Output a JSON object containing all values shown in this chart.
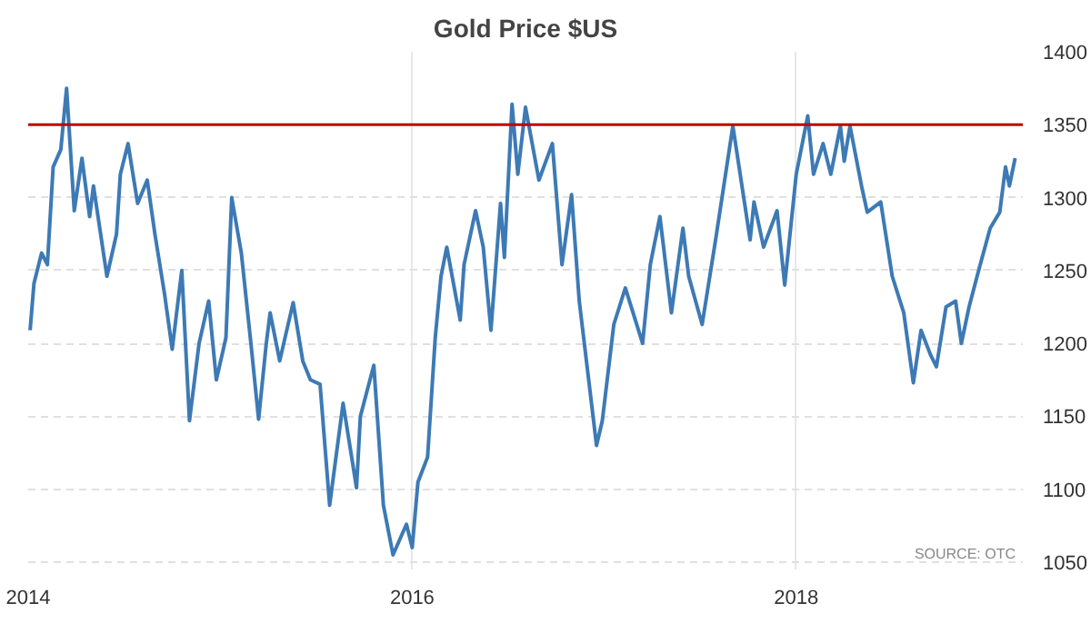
{
  "chart_data": {
    "type": "line",
    "title": "Gold Price $US",
    "x": [
      2014.01,
      2014.03,
      2014.07,
      2014.1,
      2014.13,
      2014.17,
      2014.2,
      2014.24,
      2014.28,
      2014.32,
      2014.34,
      2014.41,
      2014.46,
      2014.48,
      2014.52,
      2014.57,
      2014.62,
      2014.66,
      2014.71,
      2014.75,
      2014.8,
      2014.84,
      2014.89,
      2014.94,
      2014.98,
      2015.03,
      2015.06,
      2015.11,
      2015.16,
      2015.2,
      2015.24,
      2015.26,
      2015.31,
      2015.38,
      2015.43,
      2015.47,
      2015.52,
      2015.57,
      2015.64,
      2015.71,
      2015.73,
      2015.8,
      2015.85,
      2015.9,
      2015.97,
      2016.0,
      2016.03,
      2016.08,
      2016.12,
      2016.15,
      2016.18,
      2016.25,
      2016.27,
      2016.33,
      2016.37,
      2016.41,
      2016.46,
      2016.48,
      2016.52,
      2016.55,
      2016.59,
      2016.66,
      2016.73,
      2016.78,
      2016.83,
      2016.87,
      2016.96,
      2016.99,
      2017.05,
      2017.11,
      2017.2,
      2017.24,
      2017.29,
      2017.35,
      2017.41,
      2017.44,
      2017.51,
      2017.58,
      2017.67,
      2017.76,
      2017.78,
      2017.83,
      2017.9,
      2017.94,
      2018.0,
      2018.06,
      2018.09,
      2018.14,
      2018.18,
      2018.23,
      2018.25,
      2018.28,
      2018.34,
      2018.37,
      2018.44,
      2018.5,
      2018.56,
      2018.61,
      2018.65,
      2018.7,
      2018.73,
      2018.78,
      2018.83,
      2018.86,
      2018.9,
      2018.95,
      2019.01,
      2019.06,
      2019.09,
      2019.11,
      2019.14
    ],
    "series": [
      {
        "color": "#3d7ab5",
        "values": [
          1209,
          1241,
          1262,
          1254,
          1321,
          1333,
          1375,
          1291,
          1327,
          1287,
          1308,
          1246,
          1275,
          1316,
          1337,
          1296,
          1312,
          1275,
          1234,
          1196,
          1250,
          1147,
          1200,
          1229,
          1175,
          1204,
          1300,
          1262,
          1200,
          1148,
          1200,
          1221,
          1188,
          1228,
          1188,
          1175,
          1172,
          1089,
          1159,
          1101,
          1150,
          1185,
          1089,
          1055,
          1076,
          1060,
          1105,
          1122,
          1204,
          1246,
          1266,
          1216,
          1254,
          1291,
          1266,
          1209,
          1296,
          1259,
          1364,
          1316,
          1362,
          1312,
          1337,
          1254,
          1302,
          1229,
          1130,
          1147,
          1213,
          1238,
          1200,
          1254,
          1287,
          1221,
          1279,
          1246,
          1213,
          1271,
          1349,
          1271,
          1297,
          1266,
          1291,
          1240,
          1316,
          1356,
          1316,
          1337,
          1316,
          1349,
          1325,
          1349,
          1308,
          1290,
          1297,
          1246,
          1221,
          1173,
          1209,
          1192,
          1184,
          1225,
          1229,
          1200,
          1225,
          1250,
          1279,
          1290,
          1321,
          1308,
          1327
        ]
      }
    ],
    "xlim": [
      2014,
      2019.18
    ],
    "xticks": [
      2014,
      2016,
      2018
    ],
    "ylim": [
      1045,
      1400
    ],
    "yticks": [
      1050,
      1100,
      1150,
      1200,
      1250,
      1300,
      1350,
      1400
    ],
    "ref_lines": [
      {
        "axis": "y",
        "value": 1350,
        "color": "#c00000"
      }
    ],
    "grid": true,
    "annotations": [
      "SOURCE: OTC"
    ]
  }
}
